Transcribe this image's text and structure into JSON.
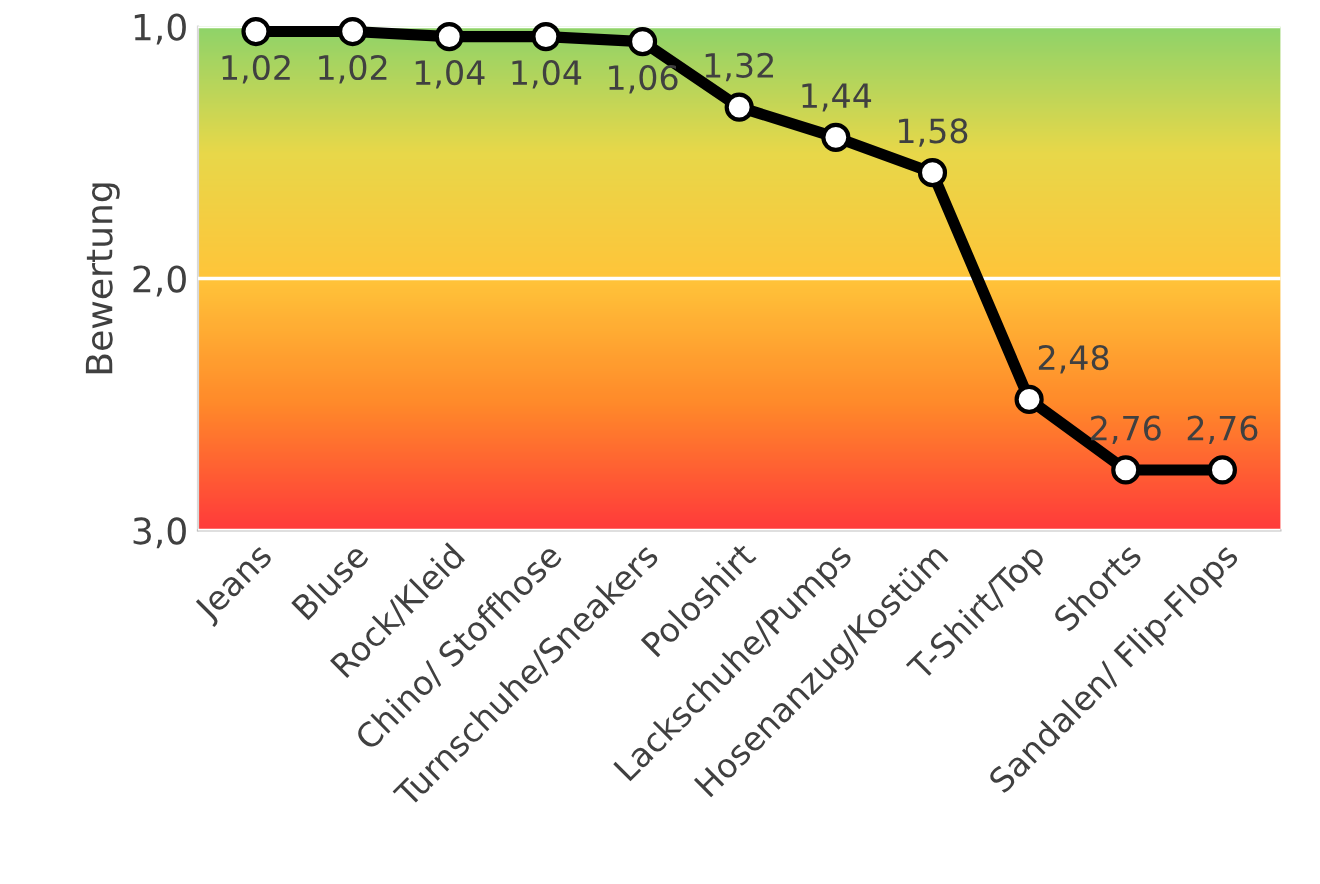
{
  "chart_data": {
    "type": "line",
    "ylabel": "Bewertung",
    "categories": [
      "Jeans",
      "Bluse",
      "Rock/Kleid",
      "Chino/ Stoffhose",
      "Turnschuhe/Sneakers",
      "Poloshirt",
      "Lackschuhe/Pumps",
      "Hosenanzug/Kostüm",
      "T-Shirt/Top",
      "Shorts",
      "Sandalen/ Flip-Flops"
    ],
    "series": [
      {
        "color": "#000000",
        "values": [
          1.02,
          1.02,
          1.04,
          1.04,
          1.06,
          1.32,
          1.44,
          1.58,
          2.48,
          2.76,
          2.76
        ],
        "value_labels": [
          "1,02",
          "1,02",
          "1,04",
          "1,04",
          "1,06",
          "1,32",
          "1,44",
          "1,58",
          "2,48",
          "2,76",
          "2,76"
        ]
      }
    ],
    "ylim": [
      3.0,
      1.0
    ],
    "yticks": [
      {
        "value": 1,
        "label": "1,0"
      },
      {
        "value": 2,
        "label": "2,0"
      },
      {
        "value": 3,
        "label": "3,0"
      }
    ],
    "grid": "y",
    "marker": "circle",
    "line_style": "solid"
  }
}
